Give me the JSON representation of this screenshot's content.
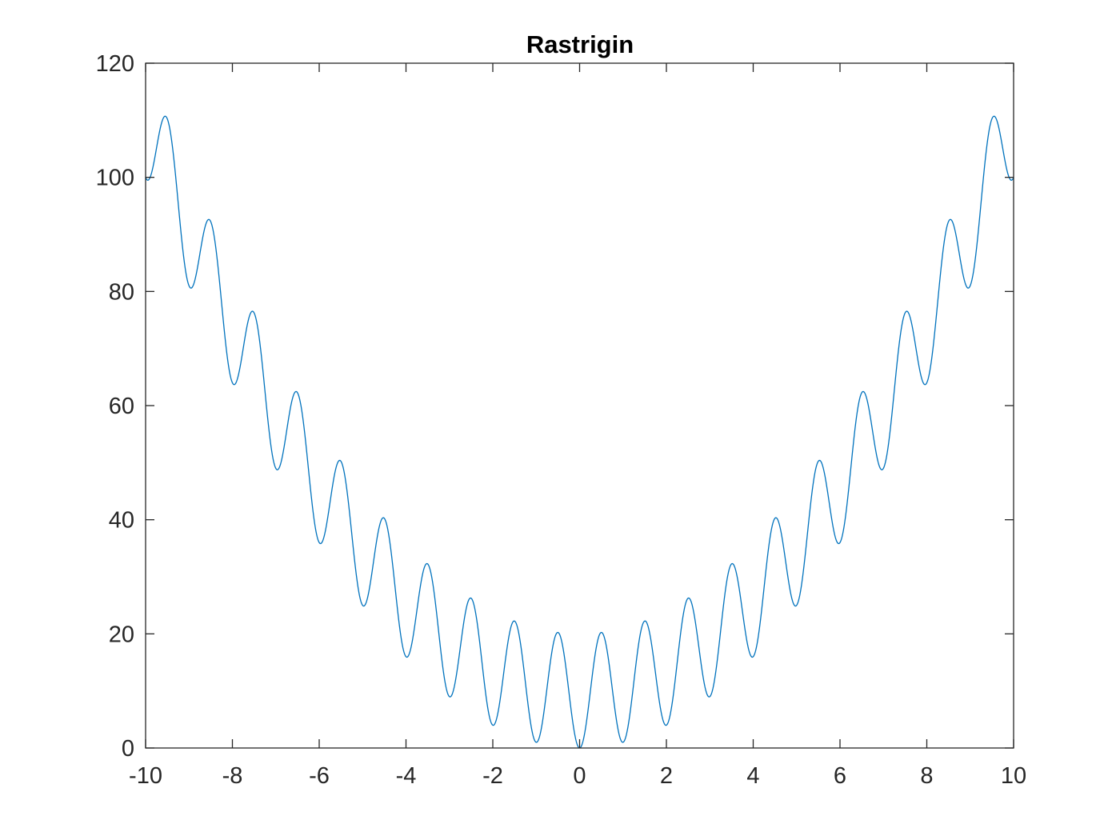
{
  "chart_data": {
    "type": "line",
    "title": "Rastrigin",
    "xlabel": "",
    "ylabel": "",
    "xlim": [
      -10,
      10
    ],
    "ylim": [
      0,
      120
    ],
    "x_ticks": [
      -10,
      -8,
      -6,
      -4,
      -2,
      0,
      2,
      4,
      6,
      8,
      10
    ],
    "y_ticks": [
      0,
      20,
      40,
      60,
      80,
      100,
      120
    ],
    "x_tick_labels": [
      "-10",
      "-8",
      "-6",
      "-4",
      "-2",
      "0",
      "2",
      "4",
      "6",
      "8",
      "10"
    ],
    "y_tick_labels": [
      "0",
      "20",
      "40",
      "60",
      "80",
      "100",
      "120"
    ],
    "grid": false,
    "legend": "none",
    "series": [
      {
        "function": "10 + x^2 - 10*cos(2*pi*x)",
        "x_start": -10,
        "x_end": 10,
        "samples": 2001,
        "color": "#0072BD"
      }
    ],
    "extrema": [
      {
        "x": -9.55,
        "y": 110.7,
        "kind": "max"
      },
      {
        "x": -8.55,
        "y": 92.6,
        "kind": "max"
      },
      {
        "x": -7.55,
        "y": 76.5,
        "kind": "max"
      },
      {
        "x": -6.54,
        "y": 62.4,
        "kind": "max"
      },
      {
        "x": -5.54,
        "y": 50.4,
        "kind": "max"
      },
      {
        "x": -4.53,
        "y": 40.3,
        "kind": "max"
      },
      {
        "x": -3.52,
        "y": 32.3,
        "kind": "max"
      },
      {
        "x": -2.52,
        "y": 26.3,
        "kind": "max"
      },
      {
        "x": -1.51,
        "y": 22.2,
        "kind": "max"
      },
      {
        "x": -0.5,
        "y": 20.3,
        "kind": "max"
      },
      {
        "x": 0,
        "y": 0,
        "kind": "min"
      },
      {
        "x": 0.5,
        "y": 20.3,
        "kind": "max"
      },
      {
        "x": 1.51,
        "y": 22.2,
        "kind": "max"
      },
      {
        "x": 2.52,
        "y": 26.3,
        "kind": "max"
      },
      {
        "x": 3.52,
        "y": 32.3,
        "kind": "max"
      },
      {
        "x": 4.53,
        "y": 40.3,
        "kind": "max"
      },
      {
        "x": 5.54,
        "y": 50.4,
        "kind": "max"
      },
      {
        "x": 6.54,
        "y": 62.4,
        "kind": "max"
      },
      {
        "x": 7.55,
        "y": 76.5,
        "kind": "max"
      },
      {
        "x": 8.55,
        "y": 92.6,
        "kind": "max"
      },
      {
        "x": 9.55,
        "y": 110.7,
        "kind": "max"
      }
    ]
  }
}
